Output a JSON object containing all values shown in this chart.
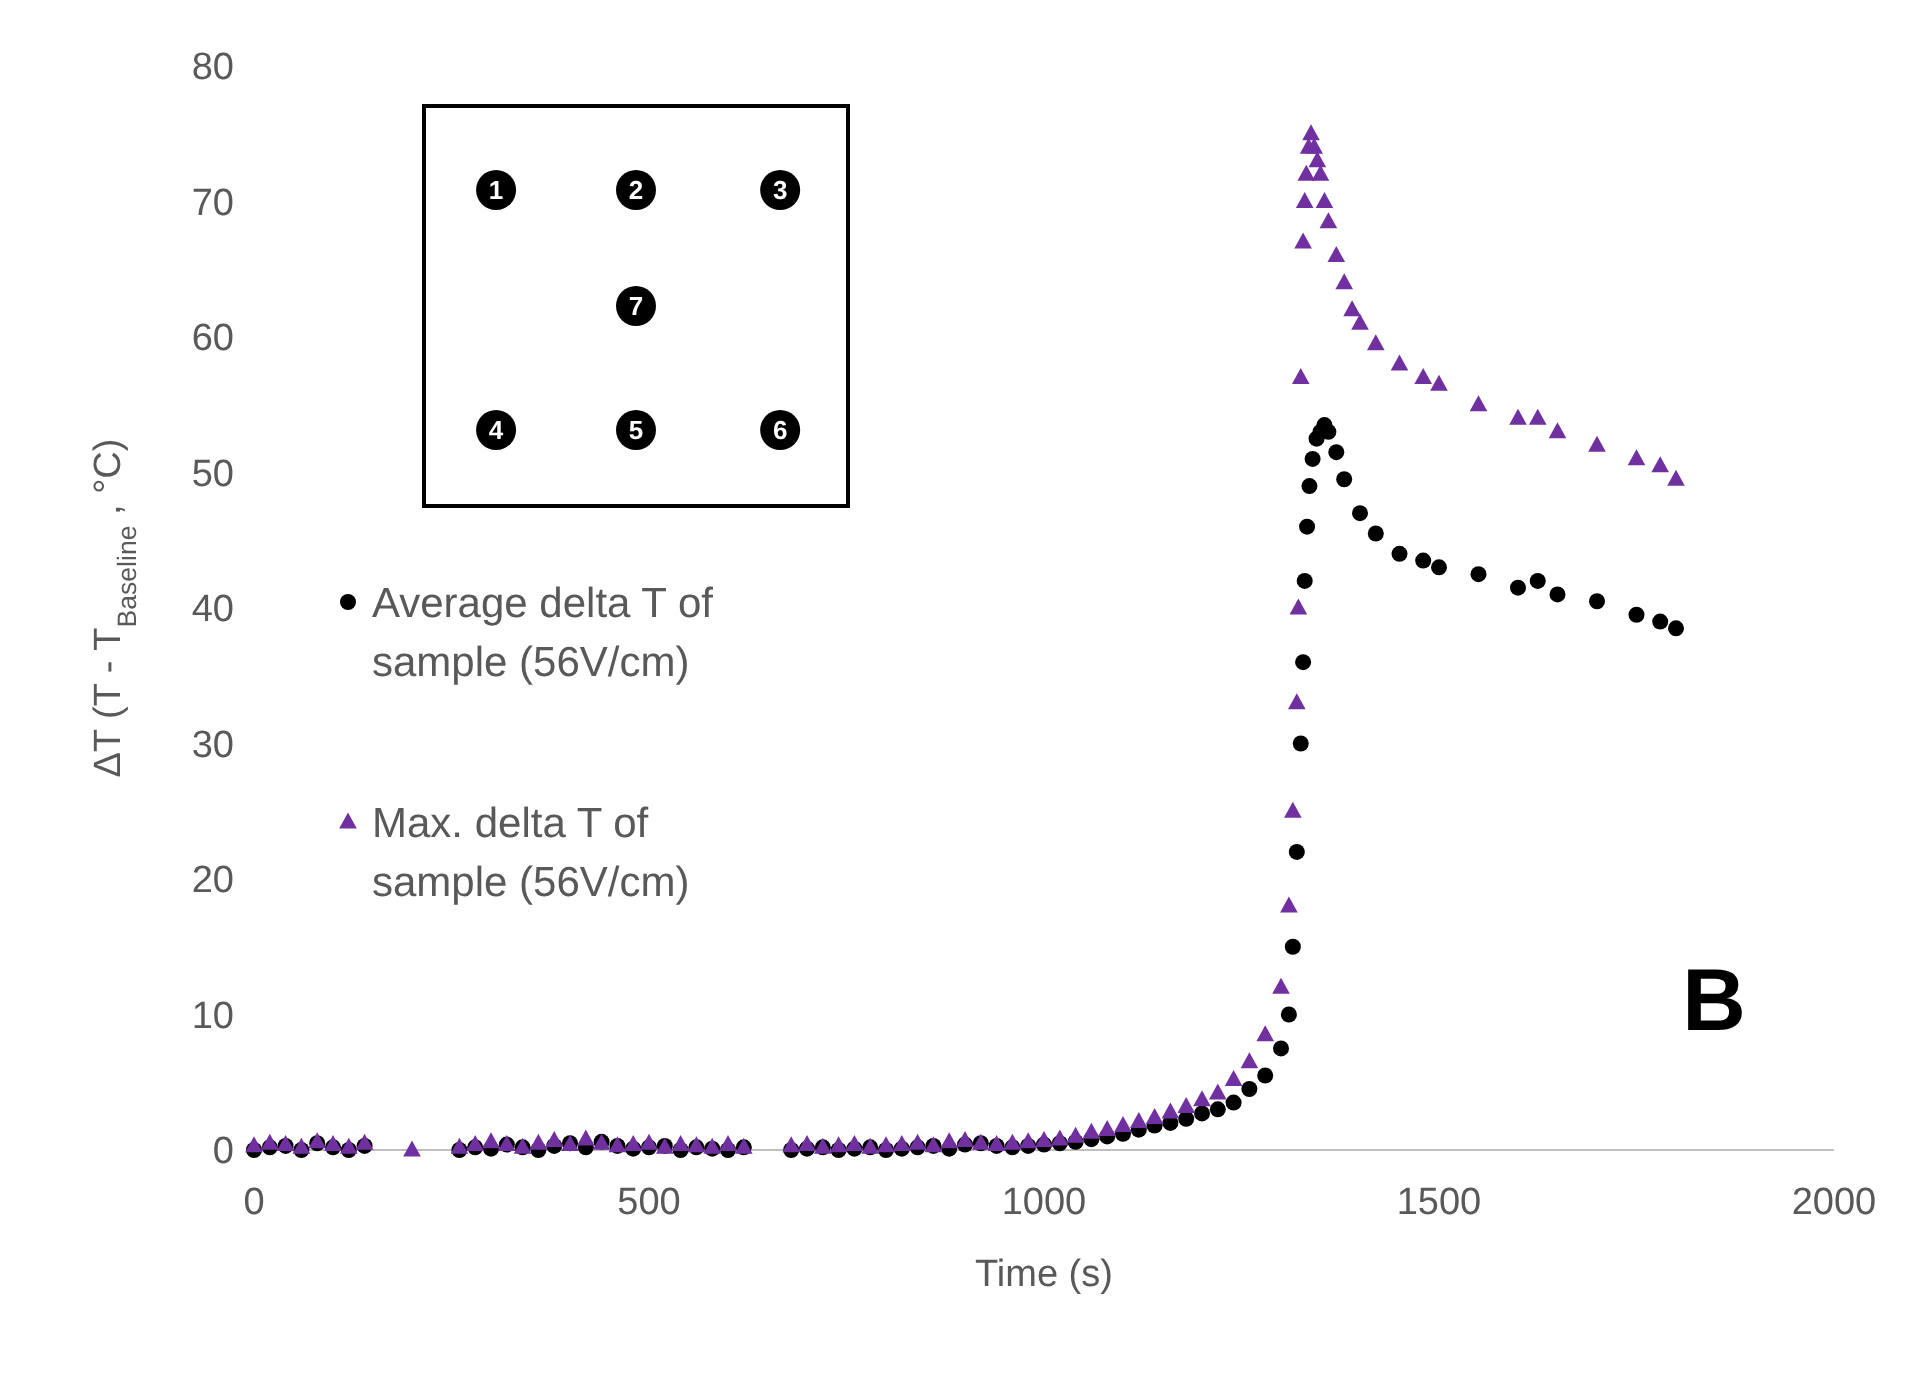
{
  "chart_data": {
    "type": "scatter",
    "xlabel": "Time (s)",
    "ylabel": "ΔT (T - T$_{Baseline}$ , °C)",
    "xlim": [
      0,
      2000
    ],
    "xticks": [
      0,
      500,
      1000,
      1500,
      2000
    ],
    "ylim": [
      0,
      80
    ],
    "yticks": [
      0,
      10,
      20,
      30,
      40,
      50,
      60,
      70,
      80
    ],
    "legend": "left",
    "annotations": [
      "1",
      "2",
      "3",
      "7",
      "4",
      "5",
      "6",
      "B"
    ],
    "series": [
      {
        "name": "Average delta T of sample (56V/cm)",
        "color": "#000000",
        "marker": "circle",
        "x": [
          0,
          20,
          40,
          60,
          80,
          100,
          120,
          140,
          260,
          280,
          300,
          320,
          340,
          360,
          380,
          400,
          420,
          440,
          460,
          480,
          500,
          520,
          540,
          560,
          580,
          600,
          620,
          680,
          700,
          720,
          740,
          760,
          780,
          800,
          820,
          840,
          860,
          880,
          900,
          920,
          940,
          960,
          980,
          1000,
          1020,
          1040,
          1060,
          1080,
          1100,
          1120,
          1140,
          1160,
          1180,
          1200,
          1220,
          1240,
          1260,
          1280,
          1300,
          1310,
          1315,
          1320,
          1325,
          1328,
          1330,
          1333,
          1336,
          1340,
          1345,
          1350,
          1355,
          1360,
          1370,
          1380,
          1400,
          1420,
          1450,
          1480,
          1500,
          1550,
          1600,
          1625,
          1650,
          1700,
          1750,
          1780,
          1800
        ],
        "values": [
          0,
          0.2,
          0.3,
          0,
          0.5,
          0.2,
          0,
          0.3,
          0,
          0.2,
          0.1,
          0.4,
          0.2,
          0,
          0.3,
          0.5,
          0.2,
          0.6,
          0.3,
          0.1,
          0.2,
          0.3,
          0,
          0.2,
          0.1,
          0,
          0.2,
          0,
          0.1,
          0.2,
          0,
          0.1,
          0.2,
          0,
          0.1,
          0.2,
          0.3,
          0.1,
          0.4,
          0.5,
          0.3,
          0.2,
          0.3,
          0.4,
          0.5,
          0.6,
          0.8,
          1,
          1.2,
          1.5,
          1.8,
          2,
          2.3,
          2.7,
          3,
          3.5,
          4.5,
          5.5,
          7.5,
          10,
          15,
          22,
          30,
          36,
          42,
          46,
          49,
          51,
          52.5,
          53,
          53.5,
          53,
          51.5,
          49.5,
          47,
          45.5,
          44,
          43.5,
          43,
          42.5,
          41.5,
          42,
          41,
          40.5,
          39.5,
          39,
          38.5
        ]
      },
      {
        "name": "Max. delta T of sample (56V/cm)",
        "color": "#7030a0",
        "marker": "triangle",
        "x": [
          0,
          20,
          40,
          60,
          80,
          100,
          120,
          140,
          200,
          260,
          280,
          300,
          320,
          340,
          360,
          380,
          400,
          420,
          440,
          460,
          480,
          500,
          520,
          540,
          560,
          580,
          600,
          620,
          680,
          700,
          720,
          740,
          760,
          780,
          800,
          820,
          840,
          860,
          880,
          900,
          920,
          940,
          960,
          980,
          1000,
          1020,
          1040,
          1060,
          1080,
          1100,
          1120,
          1140,
          1160,
          1180,
          1200,
          1220,
          1240,
          1260,
          1280,
          1300,
          1310,
          1315,
          1320,
          1322,
          1325,
          1328,
          1330,
          1332,
          1335,
          1338,
          1342,
          1346,
          1350,
          1355,
          1360,
          1370,
          1380,
          1390,
          1400,
          1420,
          1450,
          1480,
          1500,
          1550,
          1600,
          1625,
          1650,
          1700,
          1750,
          1780,
          1800
        ],
        "values": [
          0.3,
          0.5,
          0.4,
          0.2,
          0.6,
          0.4,
          0.2,
          0.5,
          0,
          0.2,
          0.4,
          0.6,
          0.4,
          0.2,
          0.5,
          0.7,
          0.4,
          0.8,
          0.5,
          0.3,
          0.4,
          0.5,
          0.2,
          0.4,
          0.3,
          0.2,
          0.4,
          0.2,
          0.3,
          0.4,
          0.2,
          0.3,
          0.4,
          0.2,
          0.3,
          0.4,
          0.5,
          0.3,
          0.6,
          0.7,
          0.5,
          0.4,
          0.5,
          0.6,
          0.7,
          0.8,
          1,
          1.3,
          1.5,
          1.8,
          2.1,
          2.4,
          2.8,
          3.2,
          3.7,
          4.2,
          5.2,
          6.5,
          8.5,
          12,
          18,
          25,
          33,
          40,
          57,
          67,
          70,
          72,
          74,
          75,
          74,
          73,
          72,
          70,
          68.5,
          66,
          64,
          62,
          61,
          59.5,
          58,
          57,
          56.5,
          55,
          54,
          54,
          53,
          52,
          51,
          50.5,
          49.5
        ]
      }
    ]
  }
}
